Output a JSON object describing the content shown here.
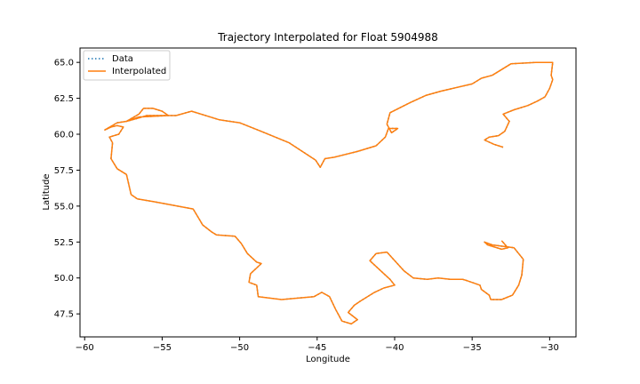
{
  "chart_data": {
    "type": "line",
    "title": "Trajectory Interpolated for Float 5904988",
    "xlabel": "Longitude",
    "ylabel": "Latitude",
    "xlim": [
      -60.3,
      -28.3
    ],
    "ylim": [
      45.9,
      66.0
    ],
    "xticks": [
      -60,
      -55,
      -50,
      -45,
      -40,
      -35,
      -30
    ],
    "yticks": [
      47.5,
      50.0,
      52.5,
      55.0,
      57.5,
      60.0,
      62.5,
      65.0
    ],
    "grid": false,
    "legend_position": "top-left",
    "series": [
      {
        "name": "Data",
        "style": "dotted",
        "color": "#1f77b4"
      },
      {
        "name": "Interpolated",
        "style": "solid",
        "color": "#ff7f0e"
      }
    ],
    "x": [
      -33.0,
      -33.6,
      -34.2,
      -33.9,
      -33.3,
      -32.9,
      -32.6,
      -33.0,
      -32.3,
      -31.4,
      -30.8,
      -30.3,
      -30.0,
      -29.8,
      -29.9,
      -29.8,
      -30.3,
      -30.9,
      -32.5,
      -33.7,
      -34.4,
      -35.0,
      -37.0,
      -38.0,
      -39.0,
      -40.3,
      -40.5,
      -40.2,
      -39.8,
      -40.4,
      -40.6,
      -41.2,
      -42.4,
      -43.9,
      -44.5,
      -44.8,
      -45.1,
      -46.8,
      -48.6,
      -50.0,
      -51.3,
      -53.1,
      -54.1,
      -56.0,
      -56.6,
      -57.3,
      -56.5,
      -54.6,
      -55.0,
      -55.6,
      -56.2,
      -56.5,
      -57.3,
      -57.9,
      -58.7,
      -58.3,
      -57.9,
      -57.5,
      -57.8,
      -58.4,
      -58.2,
      -58.3,
      -57.9,
      -57.3,
      -57.0,
      -56.6,
      -55.5,
      -53.0,
      -52.5,
      -52.4,
      -51.8,
      -51.5,
      -50.3,
      -49.9,
      -49.5,
      -48.9,
      -48.6,
      -49.3,
      -49.4,
      -48.9,
      -48.8,
      -47.3,
      -45.2,
      -44.7,
      -44.2,
      -43.8,
      -43.4,
      -42.8,
      -42.4,
      -43.0,
      -42.6,
      -42.2,
      -41.3,
      -40.7,
      -40.0,
      -40.3,
      -40.8,
      -41.6,
      -41.2,
      -40.5,
      -39.4,
      -38.8,
      -37.9,
      -37.2,
      -36.4,
      -35.6,
      -35.3,
      -34.5,
      -34.4,
      -33.9,
      -33.8,
      -33.1,
      -32.4,
      -32.0,
      -31.8,
      -31.7,
      -32.3,
      -33.7,
      -34.2,
      -34.0,
      -33.1,
      -32.7,
      -33.1
    ],
    "y": [
      59.1,
      59.3,
      59.6,
      59.8,
      59.9,
      60.2,
      60.9,
      61.4,
      61.7,
      62.0,
      62.3,
      62.6,
      63.2,
      63.8,
      64.1,
      65.0,
      65.0,
      65.0,
      64.9,
      64.1,
      63.9,
      63.5,
      63.0,
      62.7,
      62.2,
      61.5,
      60.7,
      60.1,
      60.4,
      60.4,
      59.8,
      59.2,
      58.8,
      58.4,
      58.3,
      57.7,
      58.2,
      59.4,
      60.2,
      60.8,
      61.0,
      61.6,
      61.3,
      61.3,
      61.1,
      60.9,
      61.2,
      61.3,
      61.6,
      61.8,
      61.8,
      61.4,
      60.9,
      60.8,
      60.3,
      60.5,
      60.6,
      60.5,
      60.0,
      59.8,
      59.4,
      58.3,
      57.6,
      57.2,
      55.8,
      55.5,
      55.3,
      54.8,
      53.9,
      53.7,
      53.2,
      53.0,
      52.9,
      52.4,
      51.7,
      51.1,
      51.0,
      50.3,
      49.7,
      49.5,
      48.7,
      48.5,
      48.7,
      49.0,
      48.7,
      47.8,
      47.0,
      46.8,
      47.1,
      47.6,
      48.1,
      48.4,
      49.0,
      49.3,
      49.5,
      49.9,
      50.4,
      51.2,
      51.7,
      51.8,
      50.5,
      50.0,
      49.9,
      50.0,
      49.9,
      49.9,
      49.8,
      49.5,
      49.2,
      48.8,
      48.5,
      48.5,
      48.8,
      49.5,
      50.2,
      51.3,
      52.1,
      52.3,
      52.5,
      52.3,
      52.0,
      52.1,
      52.6
    ]
  }
}
